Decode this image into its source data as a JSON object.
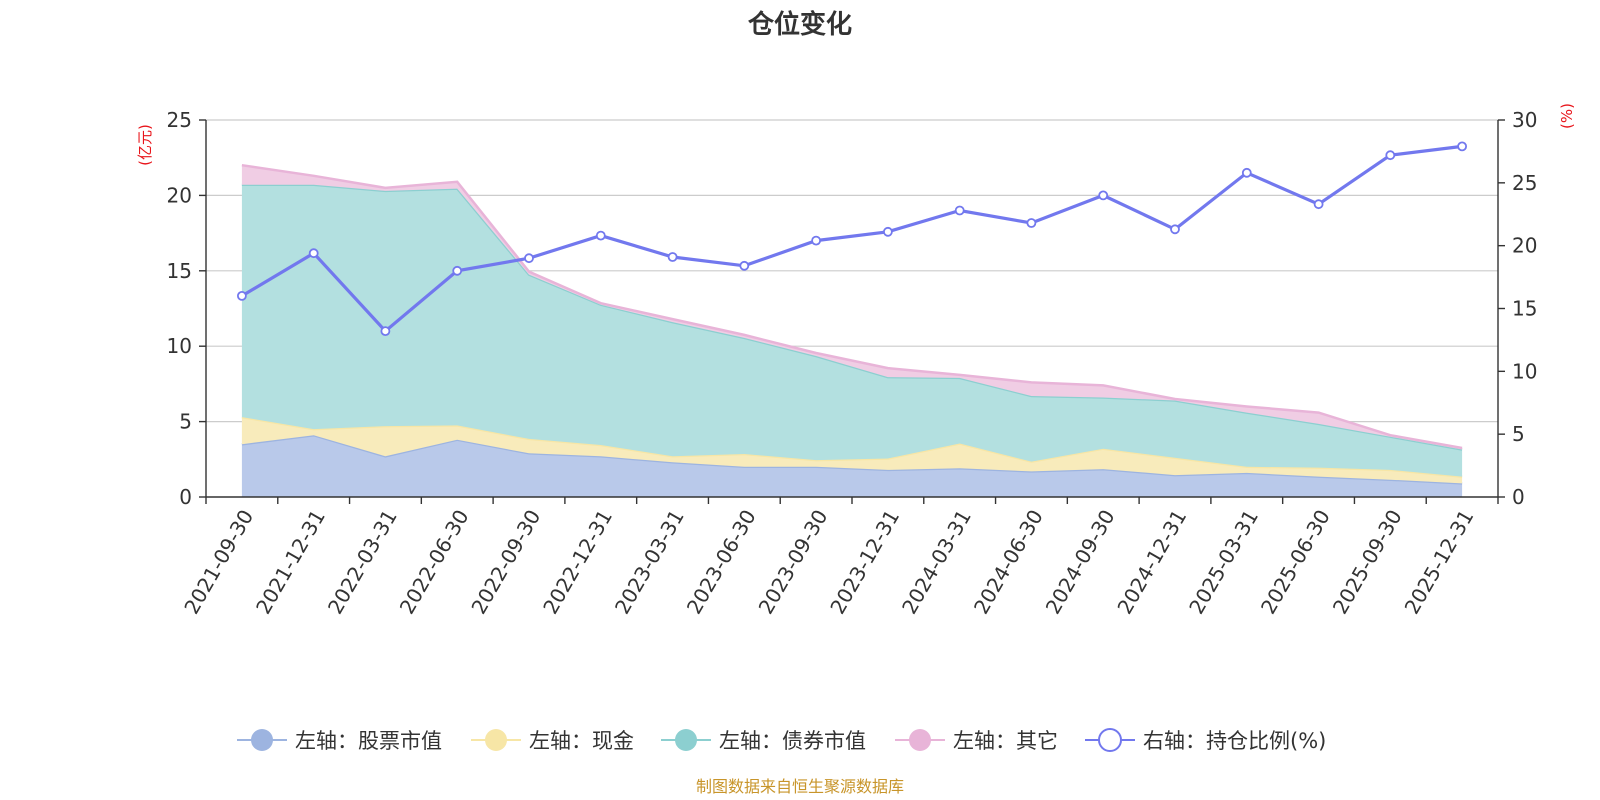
{
  "chart_data": {
    "type": "area",
    "title": "仓位变化",
    "left_unit": "(亿元)",
    "right_unit": "(%)",
    "unit_color": "#e8141a",
    "left_ylim": [
      0,
      25
    ],
    "left_ticks": [
      "0",
      "5",
      "10",
      "15",
      "20",
      "25"
    ],
    "right_ylim": [
      0,
      30
    ],
    "right_ticks": [
      "0",
      "5",
      "10",
      "15",
      "20",
      "25",
      "30"
    ],
    "categories": [
      "2021-09-30",
      "2021-12-31",
      "2022-03-31",
      "2022-06-30",
      "2022-09-30",
      "2022-12-31",
      "2023-03-31",
      "2023-06-30",
      "2023-09-30",
      "2023-12-31",
      "2024-03-31",
      "2024-06-30",
      "2024-09-30",
      "2024-12-31",
      "2025-03-31",
      "2025-06-30",
      "2025-09-30",
      "2025-12-31"
    ],
    "stacked_series": [
      {
        "name": "左轴：股票市值",
        "line_color": "#9db4e0",
        "fill_color": "#b9c9ea",
        "values": [
          3.5,
          4.1,
          2.7,
          3.8,
          2.9,
          2.7,
          2.3,
          2.0,
          2.0,
          1.8,
          1.9,
          1.7,
          1.85,
          1.45,
          1.6,
          1.35,
          1.15,
          0.9
        ]
      },
      {
        "name": "左轴：现金",
        "line_color": "#f7e6a6",
        "fill_color": "#f8ebbb",
        "values": [
          1.8,
          0.4,
          2.0,
          0.95,
          0.95,
          0.75,
          0.4,
          0.85,
          0.45,
          0.75,
          1.65,
          0.65,
          1.35,
          1.15,
          0.4,
          0.6,
          0.65,
          0.45
        ]
      },
      {
        "name": "左轴：债券市值",
        "line_color": "#8ccfd0",
        "fill_color": "#b3e0e0",
        "values": [
          15.4,
          16.2,
          15.6,
          15.7,
          10.9,
          9.3,
          8.9,
          7.7,
          6.9,
          5.4,
          4.35,
          4.35,
          3.4,
          3.8,
          3.6,
          2.9,
          2.2,
          1.8
        ]
      },
      {
        "name": "左轴：其它",
        "line_color": "#e8b4d8",
        "fill_color": "#f0cde4",
        "values": [
          1.3,
          0.6,
          0.2,
          0.45,
          0.2,
          0.1,
          0.2,
          0.2,
          0.2,
          0.6,
          0.2,
          0.9,
          0.8,
          0.1,
          0.4,
          0.75,
          0.1,
          0.1
        ]
      }
    ],
    "line_series": {
      "name": "右轴：持仓比例(%)",
      "color": "#7278ee",
      "values": [
        16.0,
        19.4,
        13.2,
        18.0,
        19.0,
        20.8,
        19.1,
        18.4,
        20.4,
        21.1,
        22.8,
        21.8,
        24.0,
        21.3,
        25.8,
        23.3,
        27.2,
        27.9
      ]
    },
    "source": "制图数据来自恒生聚源数据库",
    "source_color": "#c8952a"
  }
}
